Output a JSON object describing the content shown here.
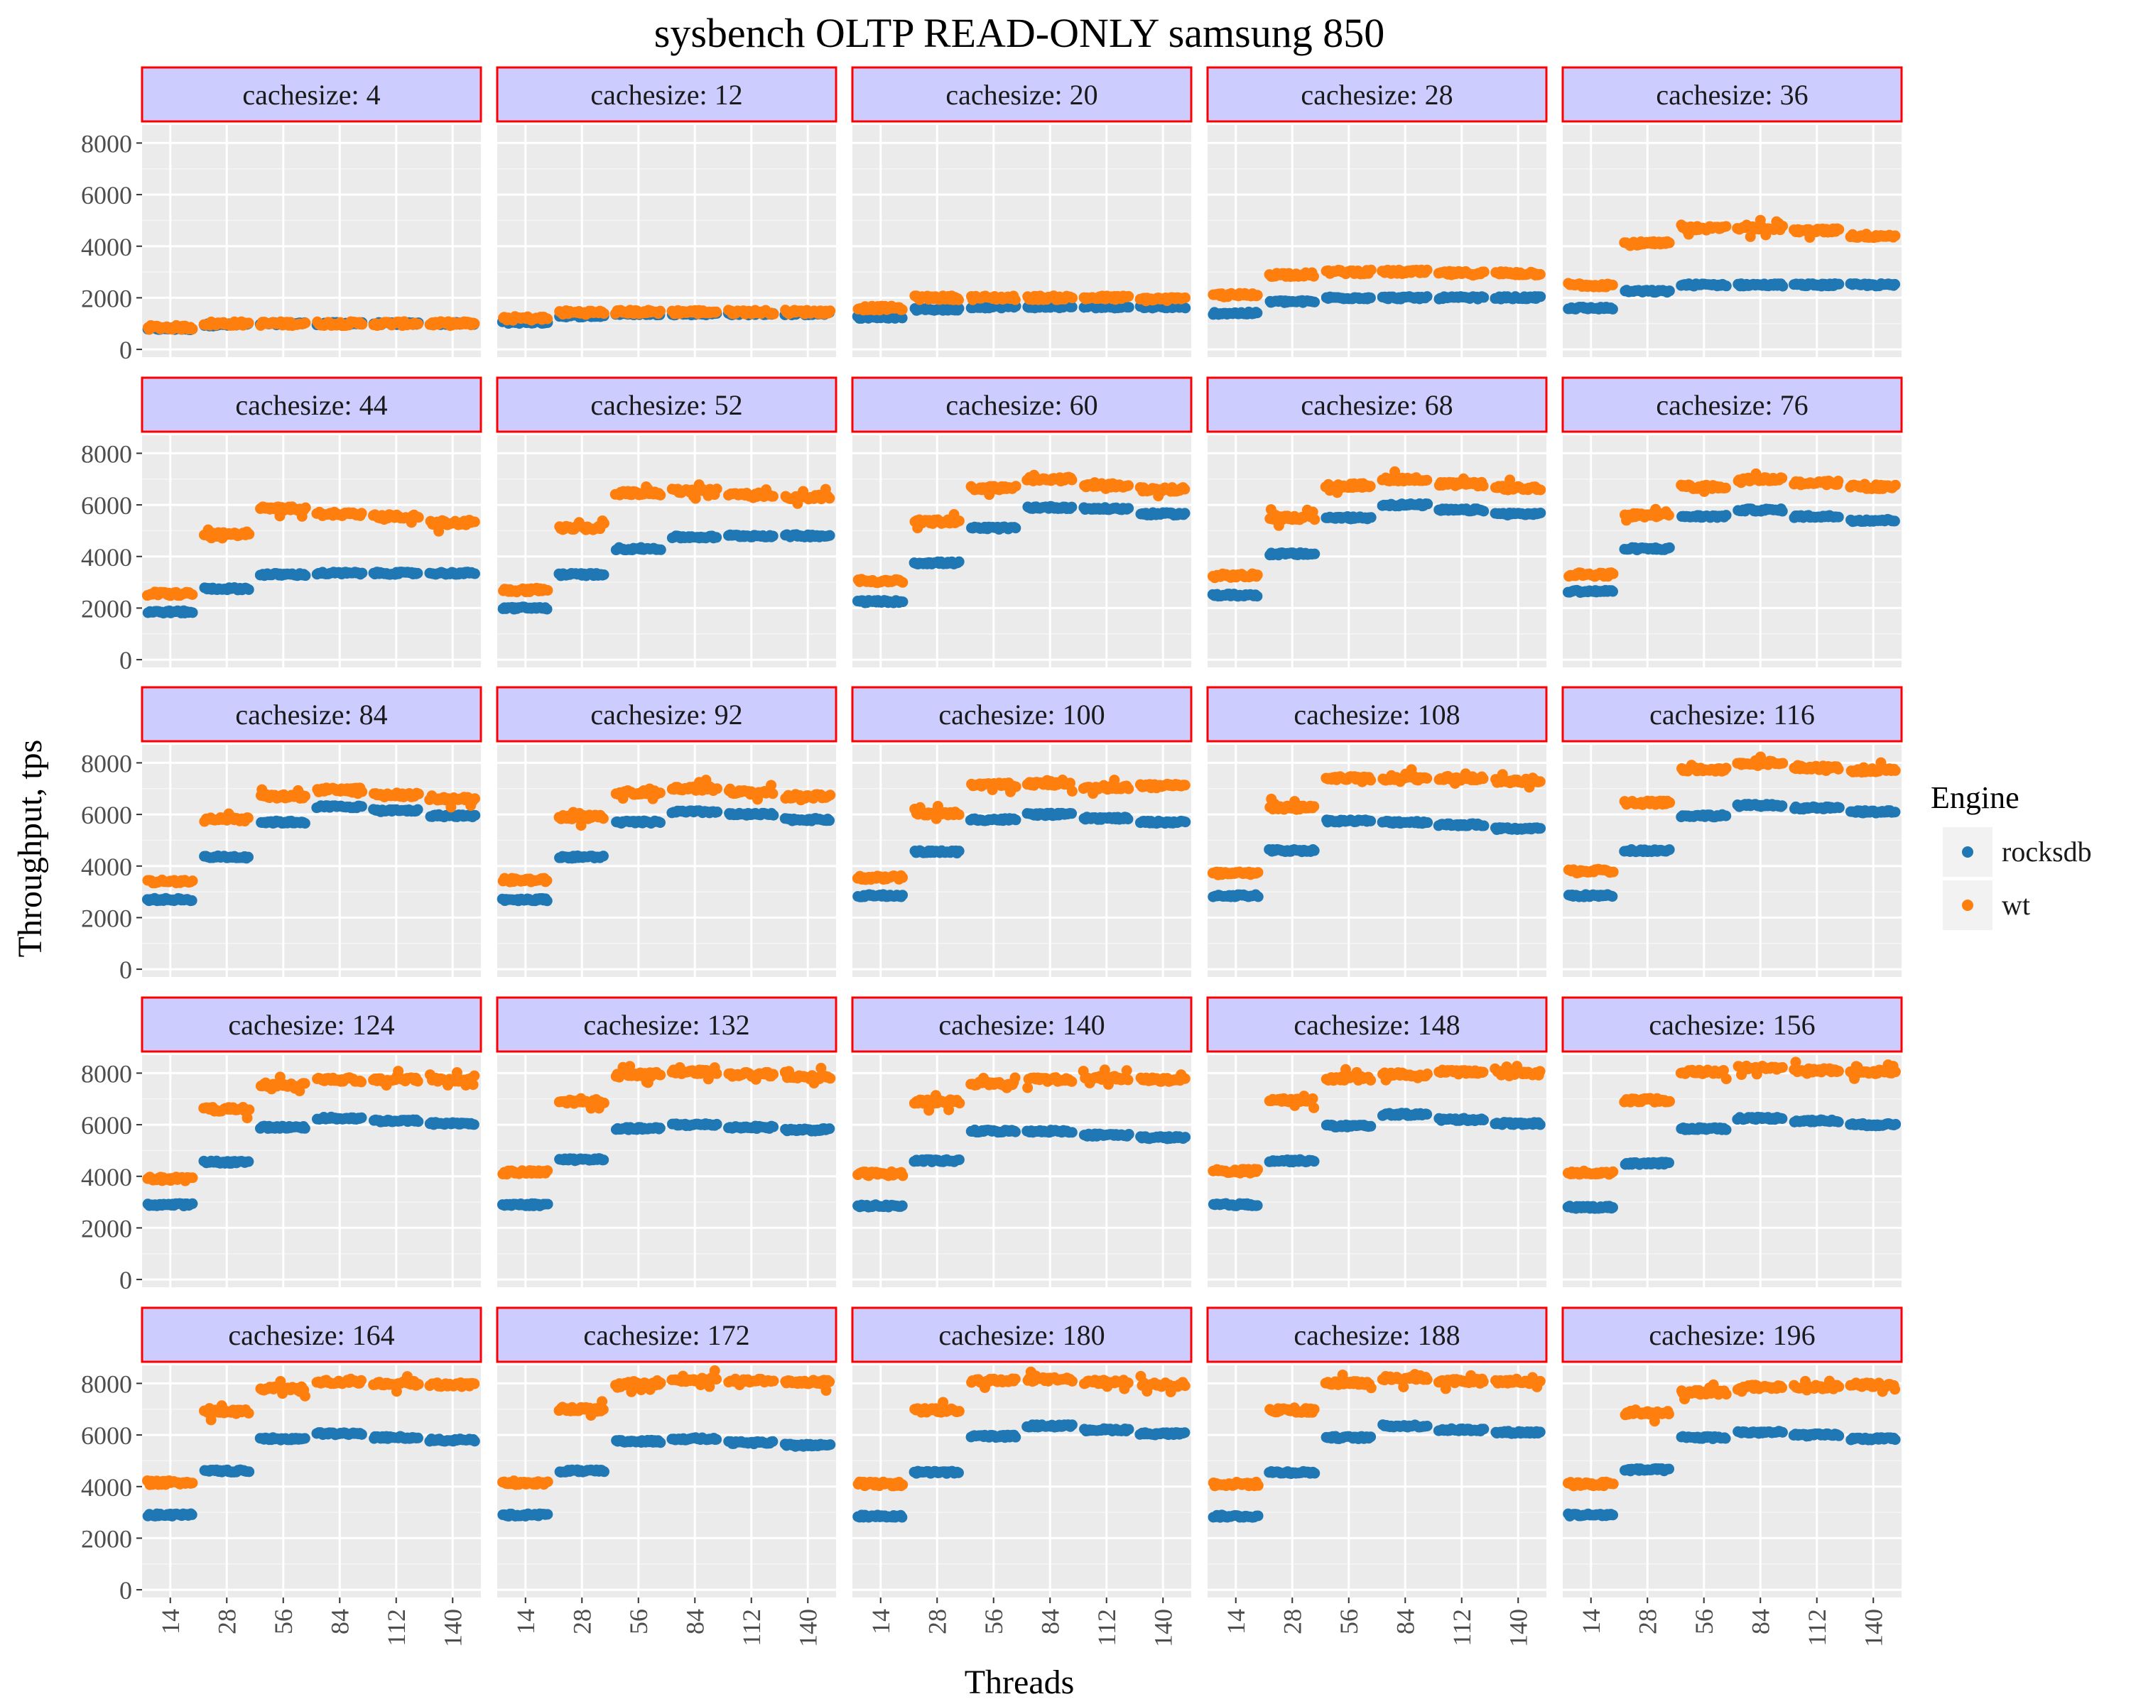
{
  "title": "sysbench OLTP READ-ONLY samsung 850",
  "chart_data": {
    "type": "scatter",
    "title": "sysbench OLTP READ-ONLY samsung 850",
    "xlabel": "Threads",
    "ylabel": "Throughput, tps",
    "x_tick_labels": [
      "14",
      "28",
      "56",
      "84",
      "112",
      "140"
    ],
    "y_ticks": [
      0,
      2000,
      4000,
      6000,
      8000
    ],
    "ylim": [
      -300,
      8700
    ],
    "grid": true,
    "facet_label_prefix": "cachesize: ",
    "facet_layout": "5x5",
    "legend": {
      "title": "Engine",
      "position": "right",
      "entries": [
        {
          "name": "rocksdb",
          "color": "#1f77b4"
        },
        {
          "name": "wt",
          "color": "#ff7f0e"
        }
      ]
    },
    "colors": {
      "rocksdb": "#1f77b4",
      "wt": "#ff7f0e",
      "panel_bg": "#ebebeb",
      "strip_bg": "#ccccff",
      "strip_border": "#ff0000"
    },
    "facets": [
      {
        "cachesize": 4,
        "rocksdb": [
          800,
          950,
          1000,
          1000,
          1000,
          1000
        ],
        "wt": [
          850,
          1000,
          1000,
          1000,
          1000,
          1000
        ]
      },
      {
        "cachesize": 12,
        "rocksdb": [
          1050,
          1300,
          1380,
          1380,
          1380,
          1380
        ],
        "wt": [
          1200,
          1430,
          1450,
          1450,
          1450,
          1450
        ]
      },
      {
        "cachesize": 20,
        "rocksdb": [
          1250,
          1550,
          1650,
          1650,
          1650,
          1650
        ],
        "wt": [
          1600,
          2000,
          2000,
          2000,
          2000,
          1950
        ]
      },
      {
        "cachesize": 28,
        "rocksdb": [
          1400,
          1850,
          2000,
          2000,
          2000,
          2000
        ],
        "wt": [
          2100,
          2900,
          3000,
          3000,
          2950,
          2950
        ]
      },
      {
        "cachesize": 36,
        "rocksdb": [
          1600,
          2250,
          2500,
          2500,
          2500,
          2500
        ],
        "wt": [
          2500,
          4100,
          4700,
          4700,
          4600,
          4400
        ]
      },
      {
        "cachesize": 44,
        "rocksdb": [
          1850,
          2750,
          3300,
          3350,
          3350,
          3350
        ],
        "wt": [
          2550,
          4850,
          5850,
          5650,
          5550,
          5300
        ]
      },
      {
        "cachesize": 52,
        "rocksdb": [
          2000,
          3300,
          4300,
          4750,
          4800,
          4800
        ],
        "wt": [
          2700,
          5100,
          6450,
          6550,
          6400,
          6300
        ]
      },
      {
        "cachesize": 60,
        "rocksdb": [
          2250,
          3750,
          5100,
          5900,
          5850,
          5650
        ],
        "wt": [
          3050,
          5350,
          6650,
          7000,
          6750,
          6600
        ]
      },
      {
        "cachesize": 68,
        "rocksdb": [
          2500,
          4100,
          5500,
          6000,
          5800,
          5650
        ],
        "wt": [
          3250,
          5500,
          6750,
          7000,
          6800,
          6650
        ]
      },
      {
        "cachesize": 76,
        "rocksdb": [
          2650,
          4300,
          5550,
          5800,
          5550,
          5400
        ],
        "wt": [
          3300,
          5600,
          6700,
          7000,
          6850,
          6700
        ]
      },
      {
        "cachesize": 84,
        "rocksdb": [
          2700,
          4350,
          5700,
          6300,
          6150,
          5950
        ],
        "wt": [
          3400,
          5800,
          6700,
          6950,
          6750,
          6600
        ]
      },
      {
        "cachesize": 92,
        "rocksdb": [
          2700,
          4350,
          5700,
          6100,
          6000,
          5800
        ],
        "wt": [
          3450,
          5900,
          6850,
          7000,
          6850,
          6700
        ]
      },
      {
        "cachesize": 100,
        "rocksdb": [
          2850,
          4550,
          5800,
          6000,
          5850,
          5700
        ],
        "wt": [
          3550,
          6050,
          7150,
          7200,
          7050,
          7100
        ]
      },
      {
        "cachesize": 108,
        "rocksdb": [
          2850,
          4600,
          5750,
          5700,
          5600,
          5450
        ],
        "wt": [
          3700,
          6250,
          7400,
          7400,
          7400,
          7300
        ]
      },
      {
        "cachesize": 116,
        "rocksdb": [
          2850,
          4600,
          5950,
          6350,
          6250,
          6100
        ],
        "wt": [
          3800,
          6450,
          7750,
          8000,
          7800,
          7700
        ]
      },
      {
        "cachesize": 124,
        "rocksdb": [
          2900,
          4550,
          5900,
          6250,
          6150,
          6050
        ],
        "wt": [
          3900,
          6600,
          7550,
          7750,
          7750,
          7750
        ]
      },
      {
        "cachesize": 132,
        "rocksdb": [
          2900,
          4650,
          5850,
          6000,
          5900,
          5800
        ],
        "wt": [
          4150,
          6900,
          7950,
          8050,
          7950,
          7850
        ]
      },
      {
        "cachesize": 140,
        "rocksdb": [
          2850,
          4600,
          5750,
          5750,
          5600,
          5500
        ],
        "wt": [
          4100,
          6900,
          7600,
          7750,
          7800,
          7750
        ]
      },
      {
        "cachesize": 148,
        "rocksdb": [
          2900,
          4600,
          5950,
          6400,
          6200,
          6050
        ],
        "wt": [
          4200,
          6950,
          7800,
          7950,
          8050,
          8000
        ]
      },
      {
        "cachesize": 156,
        "rocksdb": [
          2800,
          4500,
          5850,
          6250,
          6150,
          6000
        ],
        "wt": [
          4150,
          6950,
          8050,
          8200,
          8100,
          8050
        ]
      },
      {
        "cachesize": 164,
        "rocksdb": [
          2900,
          4600,
          5850,
          6050,
          5900,
          5800
        ],
        "wt": [
          4150,
          6900,
          7800,
          8050,
          8000,
          7950
        ]
      },
      {
        "cachesize": 172,
        "rocksdb": [
          2900,
          4600,
          5750,
          5850,
          5700,
          5600
        ],
        "wt": [
          4150,
          7000,
          8000,
          8150,
          8100,
          8050
        ]
      },
      {
        "cachesize": 180,
        "rocksdb": [
          2850,
          4550,
          5950,
          6350,
          6200,
          6050
        ],
        "wt": [
          4100,
          6950,
          8100,
          8150,
          8050,
          7950
        ]
      },
      {
        "cachesize": 188,
        "rocksdb": [
          2850,
          4550,
          5900,
          6350,
          6200,
          6100
        ],
        "wt": [
          4100,
          6950,
          8000,
          8200,
          8100,
          8050
        ]
      },
      {
        "cachesize": 196,
        "rocksdb": [
          2900,
          4650,
          5900,
          6100,
          6000,
          5850
        ],
        "wt": [
          4100,
          6850,
          7650,
          7850,
          7850,
          7950
        ]
      }
    ]
  }
}
